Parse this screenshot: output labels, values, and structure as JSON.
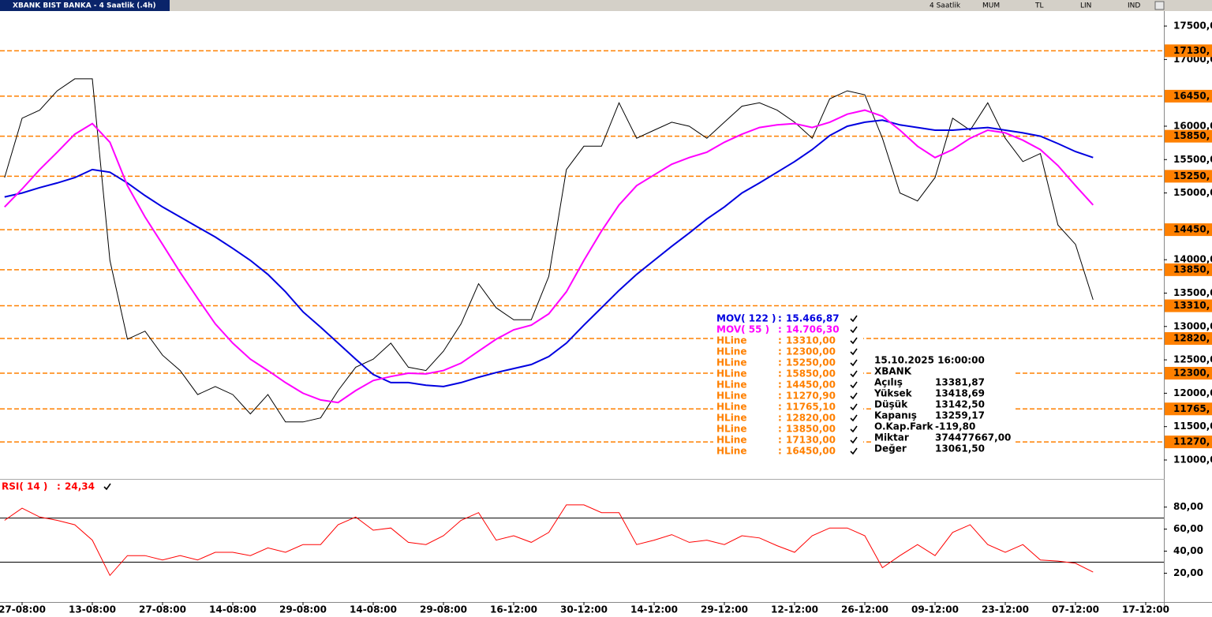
{
  "window": {
    "title": "XBANK BIST BANKA - 4 Saatlik (.4h)",
    "toolbar": [
      "4 Saatlik",
      "MUM",
      "TL",
      "LIN",
      "IND"
    ]
  },
  "chart_data": [
    {
      "type": "line",
      "categories": [
        null,
        "27-08:00",
        null,
        null,
        null,
        "13-08:00",
        null,
        null,
        null,
        "27-08:00",
        null,
        null,
        null,
        "14-08:00",
        null,
        null,
        null,
        "29-08:00",
        null,
        null,
        null,
        "14-08:00",
        null,
        null,
        null,
        "29-08:00",
        null,
        null,
        null,
        "16-12:00",
        null,
        null,
        null,
        "30-12:00",
        null,
        null,
        null,
        "14-12:00",
        null,
        null,
        null,
        "29-12:00",
        null,
        null,
        null,
        "12-12:00",
        null,
        null,
        null,
        "26-12:00",
        null,
        null,
        null,
        "09-12:00",
        null,
        null,
        null,
        "23-12:00",
        null,
        null,
        null,
        "07-12:00",
        null,
        null,
        null,
        "17-12:00"
      ],
      "legend_separator": ":",
      "series": [
        {
          "color": "#000000",
          "values": [
            15230,
            16120,
            16240,
            16530,
            16710,
            16710,
            13990,
            12810,
            12930,
            12570,
            12340,
            11980,
            12100,
            11980,
            11690,
            11980,
            11570,
            11570,
            11630,
            12040,
            12390,
            12510,
            12750,
            12390,
            12340,
            12630,
            13040,
            13640,
            13280,
            13100,
            13100,
            13750,
            15350,
            15700,
            15700,
            16350,
            15820,
            15940,
            16060,
            16000,
            15820,
            16060,
            16300,
            16350,
            16240,
            16060,
            15820,
            16410,
            16530,
            16470,
            15820,
            15000,
            14880,
            15230,
            16120,
            15940,
            16350,
            15820,
            15470,
            15590,
            14520,
            14230,
            13400,
            null,
            null,
            null
          ]
        },
        {
          "name": "MOV( 122 )",
          "legend_value": "15.466,87",
          "color": "#0000e0",
          "values": [
            14940,
            15000,
            15080,
            15150,
            15230,
            15350,
            15310,
            15150,
            14960,
            14790,
            14640,
            14490,
            14340,
            14170,
            13990,
            13780,
            13520,
            13220,
            12990,
            12750,
            12510,
            12280,
            12160,
            12160,
            12120,
            12100,
            12160,
            12240,
            12310,
            12370,
            12430,
            12550,
            12750,
            13020,
            13280,
            13540,
            13780,
            13990,
            14200,
            14400,
            14610,
            14790,
            15000,
            15150,
            15310,
            15470,
            15650,
            15860,
            16000,
            16060,
            16090,
            16020,
            15980,
            15940,
            15940,
            15960,
            15980,
            15940,
            15900,
            15850,
            15740,
            15620,
            15530,
            null,
            null,
            null
          ]
        },
        {
          "name": "MOV( 55 )",
          "legend_value": "14.706,30",
          "color": "#ff00ff",
          "values": [
            14790,
            15060,
            15350,
            15610,
            15880,
            16040,
            15760,
            15110,
            14640,
            14230,
            13810,
            13420,
            13040,
            12750,
            12510,
            12340,
            12160,
            12000,
            11900,
            11860,
            12040,
            12190,
            12250,
            12300,
            12290,
            12340,
            12450,
            12630,
            12810,
            12950,
            13020,
            13190,
            13520,
            13990,
            14430,
            14820,
            15110,
            15270,
            15430,
            15530,
            15610,
            15760,
            15880,
            15980,
            16020,
            16040,
            15980,
            16060,
            16180,
            16240,
            16150,
            15940,
            15700,
            15530,
            15650,
            15820,
            15940,
            15900,
            15790,
            15650,
            15410,
            15110,
            14820,
            null,
            null,
            null
          ]
        }
      ],
      "hlines": {
        "name": "HLine",
        "color": "#ff8000",
        "items": [
          {
            "value": 13310,
            "label": "13310,",
            "legend_label": "13310,00"
          },
          {
            "value": 12300,
            "label": "12300,",
            "legend_label": "12300,00"
          },
          {
            "value": 15250,
            "label": "15250,",
            "legend_label": "15250,00"
          },
          {
            "value": 15850,
            "label": "15850,",
            "legend_label": "15850,00"
          },
          {
            "value": 14450,
            "label": "14450,",
            "legend_label": "14450,00"
          },
          {
            "value": 11270.9,
            "label": "11270,",
            "legend_label": "11270,90"
          },
          {
            "value": 11765.1,
            "label": "11765,",
            "legend_label": "11765,10"
          },
          {
            "value": 12820,
            "label": "12820,",
            "legend_label": "12820,00"
          },
          {
            "value": 13850,
            "label": "13850,",
            "legend_label": "13850,00"
          },
          {
            "value": 17130,
            "label": "17130,",
            "legend_label": "17130,00"
          },
          {
            "value": 16450,
            "label": "16450,",
            "legend_label": "16450,00"
          }
        ]
      },
      "ylim": [
        10740,
        17725
      ],
      "yticks": [
        {
          "value": 11000,
          "label": "11000,0"
        },
        {
          "value": 11500,
          "label": "11500,0"
        },
        {
          "value": 12000,
          "label": "12000,0"
        },
        {
          "value": 12500,
          "label": "12500,0"
        },
        {
          "value": 13000,
          "label": "13000,0"
        },
        {
          "value": 13500,
          "label": "13500,0"
        },
        {
          "value": 14000,
          "label": "14000,0"
        },
        {
          "value": 15000,
          "label": "15000,0"
        },
        {
          "value": 15500,
          "label": "15500,0"
        },
        {
          "value": 16000,
          "label": "16000,0"
        },
        {
          "value": 17000,
          "label": "17000,0"
        },
        {
          "value": 17500,
          "label": "17500,0"
        }
      ],
      "info": {
        "date": "15.10.2025 16:00:00",
        "symbol": "XBANK",
        "rows": [
          [
            "Açılış",
            "13381,87"
          ],
          [
            "Yüksek",
            "13418,69"
          ],
          [
            "Düşük",
            "13142,50"
          ],
          [
            "Kapanış",
            "13259,17"
          ],
          [
            "O.Kap.Fark",
            "-119,80"
          ],
          [
            "Miktar",
            "374477667,00"
          ],
          [
            "Değer",
            "13061,50"
          ]
        ]
      }
    },
    {
      "type": "line",
      "name": "RSI( 14 )",
      "legend_value": "24,34",
      "color": "#ff0000",
      "values": [
        68,
        79,
        71,
        68,
        64,
        50,
        18,
        36,
        36,
        32,
        36,
        32,
        39,
        39,
        36,
        43,
        39,
        46,
        46,
        64,
        71,
        59,
        61,
        48,
        46,
        54,
        68,
        75,
        50,
        54,
        48,
        57,
        82,
        82,
        75,
        75,
        46,
        50,
        55,
        48,
        50,
        46,
        54,
        52,
        45,
        39,
        54,
        61,
        61,
        54,
        25,
        36,
        46,
        36,
        57,
        64,
        46,
        39,
        46,
        32,
        31,
        29,
        21,
        null,
        null,
        null
      ],
      "levels": [
        70,
        30
      ],
      "ylim": [
        -4,
        102
      ],
      "yticks": [
        {
          "value": 20,
          "label": "20,00"
        },
        {
          "value": 40,
          "label": "40,00"
        },
        {
          "value": 60,
          "label": "60,00"
        },
        {
          "value": 80,
          "label": "80,00"
        }
      ]
    }
  ]
}
